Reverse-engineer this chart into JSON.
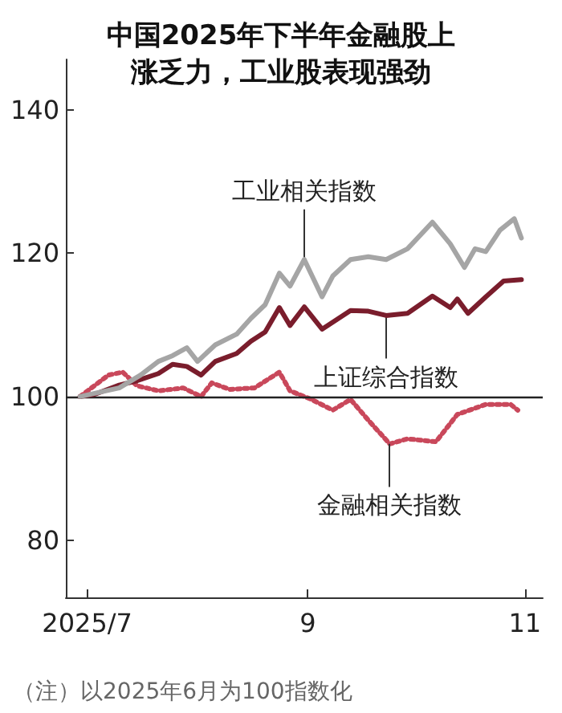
{
  "chart_data": {
    "type": "line",
    "title": "中国2025年下半年金融股上涨乏力，工业股表现强劲",
    "xlim": [
      "2025-06-25",
      "2025-11-06"
    ],
    "ylim": [
      72,
      147
    ],
    "xticks": [
      {
        "value": "2025-07-01",
        "label": "2025/7"
      },
      {
        "value": "2025-09-01",
        "label": "9"
      },
      {
        "value": "2025-11-01",
        "label": "11"
      }
    ],
    "yticks": [
      80,
      100,
      120,
      140
    ],
    "grid": false,
    "marker": "none",
    "series": [
      {
        "color": "#a5a5a5",
        "line_style": "solid",
        "x": [
          "2025-06-29",
          "2025-07-10",
          "2025-07-16",
          "2025-07-21",
          "2025-07-25",
          "2025-07-29",
          "2025-08-01",
          "2025-08-06",
          "2025-08-12",
          "2025-08-16",
          "2025-08-20",
          "2025-08-24",
          "2025-08-27",
          "2025-08-31",
          "2025-09-05",
          "2025-09-08",
          "2025-09-13",
          "2025-09-18",
          "2025-09-23",
          "2025-09-29",
          "2025-10-06",
          "2025-10-11",
          "2025-10-15",
          "2025-10-18",
          "2025-10-21",
          "2025-10-25",
          "2025-10-29",
          "2025-10-31"
        ],
        "values": [
          100,
          101.2,
          103,
          104.9,
          105.7,
          106.8,
          104.9,
          107.2,
          108.7,
          110.9,
          112.8,
          117.2,
          115.4,
          119.1,
          113.9,
          116.8,
          119.1,
          119.5,
          119.1,
          120.6,
          124.3,
          121.3,
          118,
          120.6,
          120.2,
          123.2,
          124.8,
          122.1
        ]
      },
      {
        "color": "#7a1d2c",
        "line_style": "solid",
        "x": [
          "2025-06-29",
          "2025-07-03",
          "2025-07-10",
          "2025-07-15",
          "2025-07-21",
          "2025-07-25",
          "2025-07-29",
          "2025-08-02",
          "2025-08-06",
          "2025-08-12",
          "2025-08-16",
          "2025-08-20",
          "2025-08-24",
          "2025-08-27",
          "2025-08-31",
          "2025-09-05",
          "2025-09-13",
          "2025-09-18",
          "2025-09-23",
          "2025-09-29",
          "2025-10-06",
          "2025-10-11",
          "2025-10-13",
          "2025-10-16",
          "2025-10-21",
          "2025-10-26",
          "2025-10-31"
        ],
        "values": [
          100,
          100.3,
          101.6,
          102.2,
          103.2,
          104.5,
          104.2,
          103,
          104.9,
          106,
          107.7,
          109,
          112.4,
          109.9,
          112.5,
          109.4,
          112,
          111.9,
          111.3,
          111.6,
          114,
          112.4,
          113.6,
          111.6,
          113.9,
          116.1,
          116.3
        ]
      },
      {
        "color": "#c9485b",
        "line_style": "dotted",
        "x": [
          "2025-06-29",
          "2025-07-07",
          "2025-07-11",
          "2025-07-15",
          "2025-07-21",
          "2025-07-28",
          "2025-08-02",
          "2025-08-05",
          "2025-08-10",
          "2025-08-17",
          "2025-08-24",
          "2025-08-27",
          "2025-09-02",
          "2025-09-08",
          "2025-09-13",
          "2025-09-18",
          "2025-09-24",
          "2025-09-29",
          "2025-10-07",
          "2025-10-13",
          "2025-10-21",
          "2025-10-28",
          "2025-10-30"
        ],
        "values": [
          100,
          103,
          103.4,
          101.5,
          100.8,
          101.2,
          100,
          101.9,
          101,
          101.2,
          103.4,
          100.8,
          99.6,
          98.1,
          99.6,
          96.7,
          93.4,
          94.1,
          93.7,
          97.5,
          98.9,
          98.9,
          98.1
        ]
      }
    ],
    "ref_lines": [
      {
        "axis": "y",
        "value": 100,
        "color": "#222222",
        "line_style": "solid"
      }
    ],
    "annotations": [
      {
        "text": "工业相关指数",
        "x": "2025-08-31",
        "y": 119.1
      },
      {
        "text": "上证综合指数",
        "x": "2025-09-23",
        "y": 111.3
      },
      {
        "text": "金融相关指数",
        "x": "2025-09-24",
        "y": 93.4
      },
      "（注）以2025年6月为100指数化"
    ]
  }
}
